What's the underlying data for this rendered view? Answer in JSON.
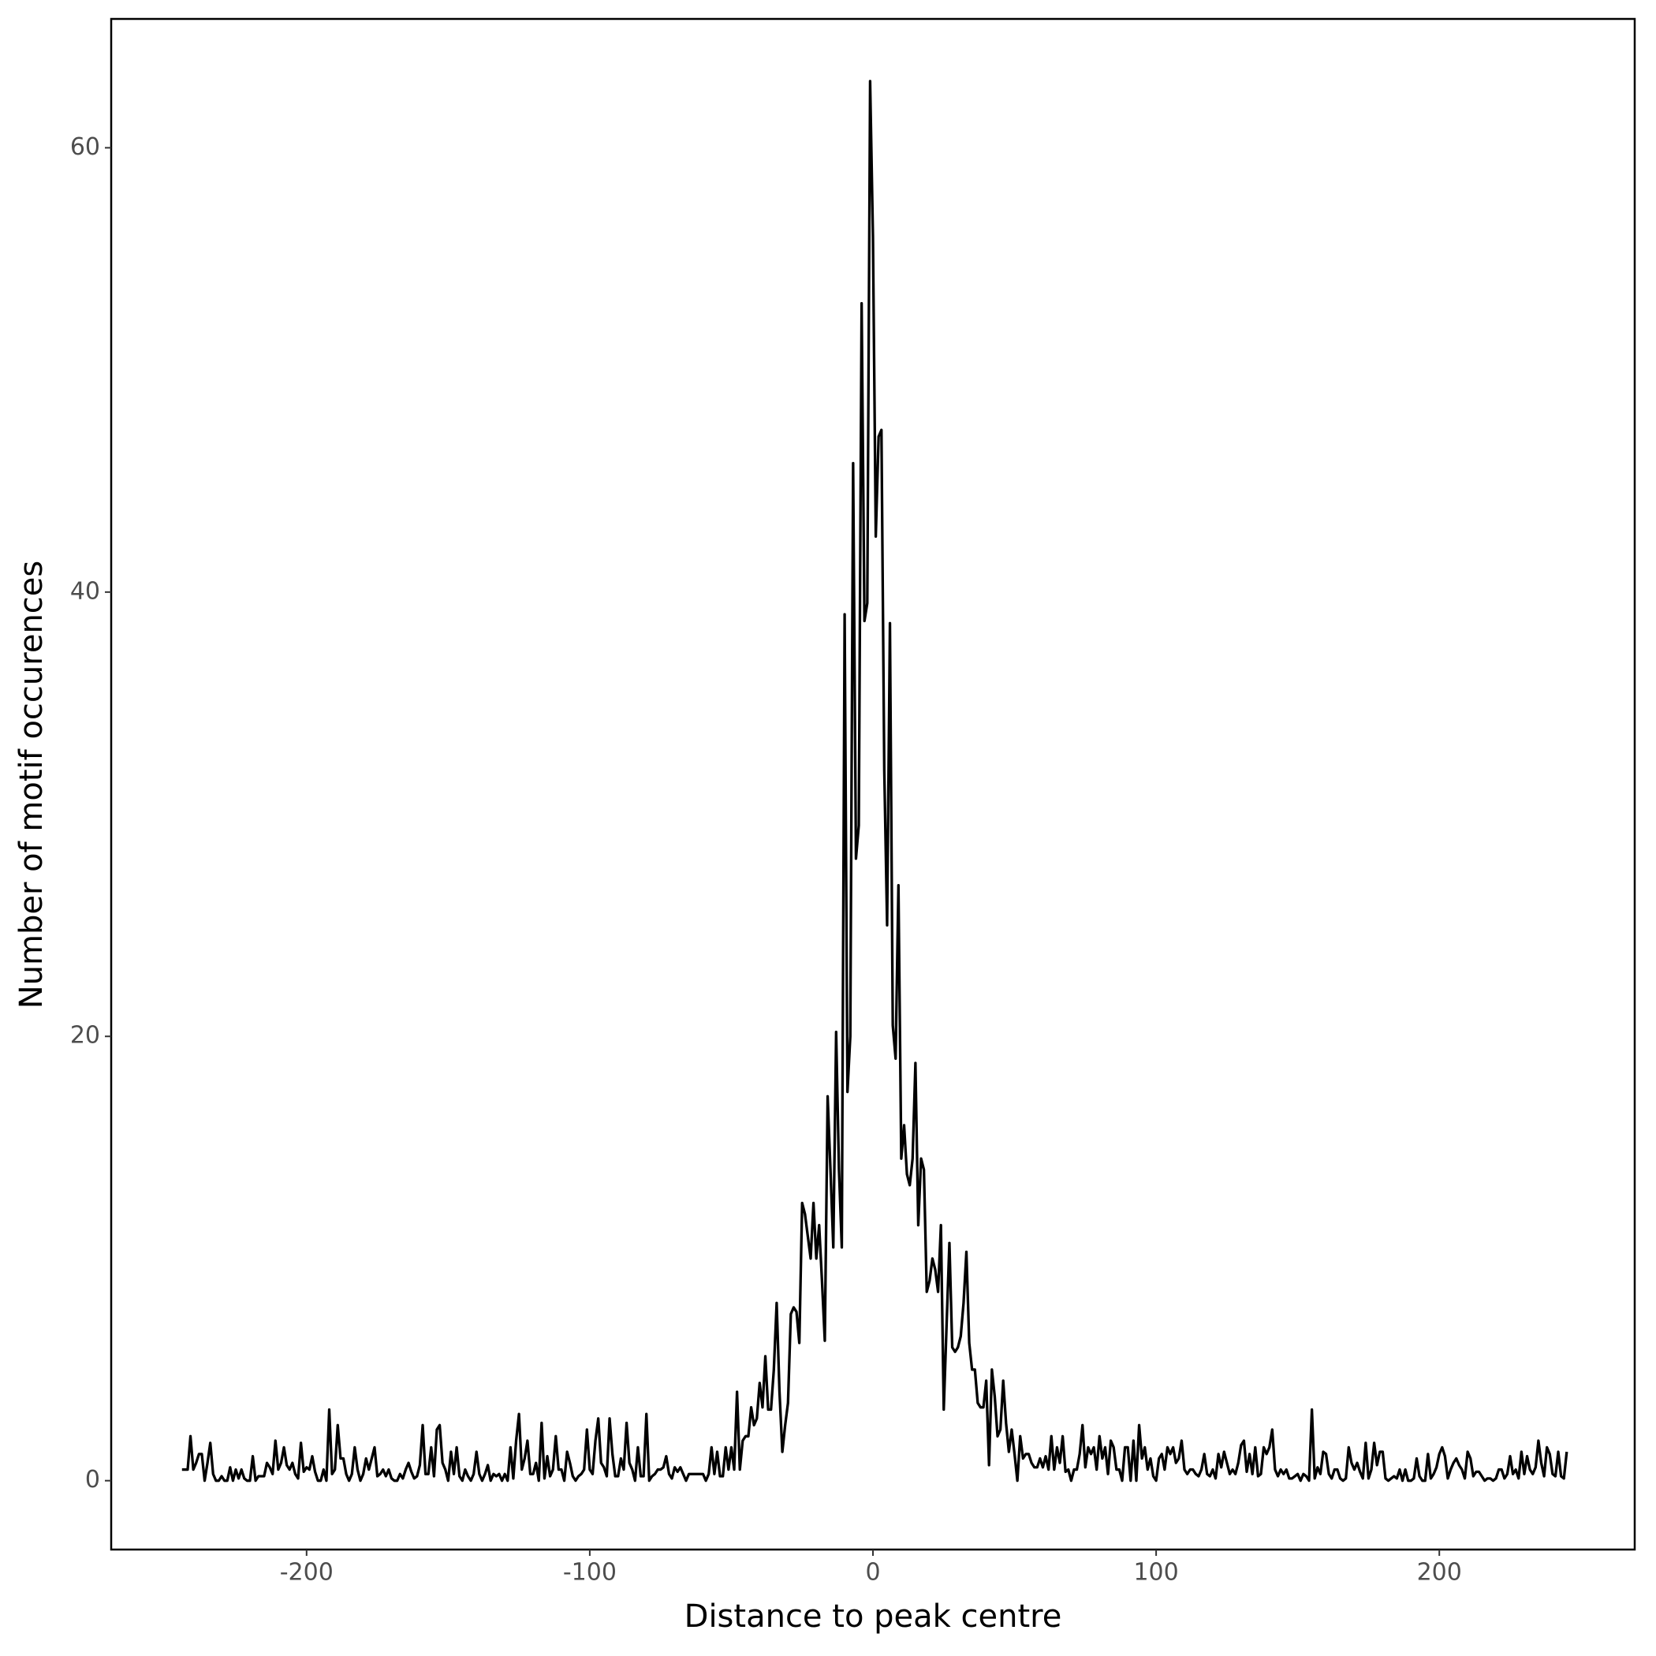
{
  "chart_data": {
    "type": "line",
    "xlabel": "Distance to peak centre",
    "ylabel": "Number of motif occurences",
    "color": "#000000",
    "xlim": [
      -269,
      269
    ],
    "ylim": [
      -3.1,
      65.8
    ],
    "xticks": [
      -200,
      -100,
      0,
      100,
      200
    ],
    "yticks": [
      0,
      20,
      40,
      60
    ],
    "x": [
      -244,
      -243,
      -242,
      -241,
      -240,
      -239,
      -238,
      -237,
      -236,
      -235,
      -234,
      -233,
      -232,
      -231,
      -230,
      -229,
      -228,
      -227,
      -226,
      -225,
      -224,
      -223,
      -222,
      -221,
      -220,
      -219,
      -218,
      -217,
      -216,
      -215,
      -214,
      -213,
      -212,
      -211,
      -210,
      -209,
      -208,
      -207,
      -206,
      -205,
      -204,
      -203,
      -202,
      -201,
      -200,
      -199,
      -198,
      -197,
      -196,
      -195,
      -194,
      -193,
      -192,
      -191,
      -190,
      -189,
      -188,
      -187,
      -186,
      -185,
      -184,
      -183,
      -182,
      -181,
      -180,
      -179,
      -178,
      -177,
      -176,
      -175,
      -174,
      -173,
      -172,
      -171,
      -170,
      -169,
      -168,
      -167,
      -166,
      -165,
      -164,
      -163,
      -162,
      -161,
      -160,
      -159,
      -158,
      -157,
      -156,
      -155,
      -154,
      -153,
      -152,
      -151,
      -150,
      -149,
      -148,
      -147,
      -146,
      -145,
      -144,
      -143,
      -142,
      -141,
      -140,
      -139,
      -138,
      -137,
      -136,
      -135,
      -134,
      -133,
      -132,
      -131,
      -130,
      -129,
      -128,
      -127,
      -126,
      -125,
      -124,
      -123,
      -122,
      -121,
      -120,
      -119,
      -118,
      -117,
      -116,
      -115,
      -114,
      -113,
      -112,
      -111,
      -110,
      -109,
      -108,
      -107,
      -106,
      -105,
      -104,
      -103,
      -102,
      -101,
      -100,
      -99,
      -98,
      -97,
      -96,
      -95,
      -94,
      -93,
      -92,
      -91,
      -90,
      -89,
      -88,
      -87,
      -86,
      -85,
      -84,
      -83,
      -82,
      -81,
      -80,
      -79,
      -78,
      -77,
      -76,
      -75,
      -74,
      -73,
      -72,
      -71,
      -70,
      -69,
      -68,
      -67,
      -66,
      -65,
      -64,
      -63,
      -62,
      -61,
      -60,
      -59,
      -58,
      -57,
      -56,
      -55,
      -54,
      -53,
      -52,
      -51,
      -50,
      -49,
      -48,
      -47,
      -46,
      -45,
      -44,
      -43,
      -42,
      -41,
      -40,
      -39,
      -38,
      -37,
      -36,
      -35,
      -34,
      -33,
      -32,
      -31,
      -30,
      -29,
      -28,
      -27,
      -26,
      -25,
      -24,
      -23,
      -22,
      -21,
      -20,
      -19,
      -18,
      -17,
      -16,
      -15,
      -14,
      -13,
      -12,
      -11,
      -10,
      -9,
      -8,
      -7,
      -6,
      -5,
      -4,
      -3,
      -2,
      -1,
      0,
      1,
      2,
      3,
      4,
      5,
      6,
      7,
      8,
      9,
      10,
      11,
      12,
      13,
      14,
      15,
      16,
      17,
      18,
      19,
      20,
      21,
      22,
      23,
      24,
      25,
      26,
      27,
      28,
      29,
      30,
      31,
      32,
      33,
      34,
      35,
      36,
      37,
      38,
      39,
      40,
      41,
      42,
      43,
      44,
      45,
      46,
      47,
      48,
      49,
      50,
      51,
      52,
      53,
      54,
      55,
      56,
      57,
      58,
      59,
      60,
      61,
      62,
      63,
      64,
      65,
      66,
      67,
      68,
      69,
      70,
      71,
      72,
      73,
      74,
      75,
      76,
      77,
      78,
      79,
      80,
      81,
      82,
      83,
      84,
      85,
      86,
      87,
      88,
      89,
      90,
      91,
      92,
      93,
      94,
      95,
      96,
      97,
      98,
      99,
      100,
      101,
      102,
      103,
      104,
      105,
      106,
      107,
      108,
      109,
      110,
      111,
      112,
      113,
      114,
      115,
      116,
      117,
      118,
      119,
      120,
      121,
      122,
      123,
      124,
      125,
      126,
      127,
      128,
      129,
      130,
      131,
      132,
      133,
      134,
      135,
      136,
      137,
      138,
      139,
      140,
      141,
      142,
      143,
      144,
      145,
      146,
      147,
      148,
      149,
      150,
      151,
      152,
      153,
      154,
      155,
      156,
      157,
      158,
      159,
      160,
      161,
      162,
      163,
      164,
      165,
      166,
      167,
      168,
      169,
      170,
      171,
      172,
      173,
      174,
      175,
      176,
      177,
      178,
      179,
      180,
      181,
      182,
      183,
      184,
      185,
      186,
      187,
      188,
      189,
      190,
      191,
      192,
      193,
      194,
      195,
      196,
      197,
      198,
      199,
      200,
      201,
      202,
      203,
      204,
      205,
      206,
      207,
      208,
      209,
      210,
      211,
      212,
      213,
      214,
      215,
      216,
      217,
      218,
      219,
      220,
      221,
      222,
      223,
      224,
      225,
      226,
      227,
      228,
      229,
      230,
      231,
      232,
      233,
      234,
      235,
      236,
      237,
      238,
      239,
      240,
      241,
      242,
      243,
      244,
      245
    ],
    "values": [
      0.5,
      0.5,
      0.5,
      2,
      0.5,
      0.8,
      1.2,
      1.2,
      0,
      0.8,
      1.7,
      0.3,
      0,
      0,
      0.2,
      0,
      0,
      0.6,
      0,
      0.5,
      0.1,
      0.5,
      0.1,
      0,
      0,
      1.1,
      0,
      0.2,
      0.2,
      0.2,
      0.8,
      0.6,
      0.3,
      1.8,
      0.5,
      0.8,
      1.5,
      0.7,
      0.5,
      0.8,
      0.3,
      0.1,
      1.7,
      0.4,
      0.6,
      0.5,
      1.1,
      0.4,
      0,
      0,
      0.5,
      0,
      3.2,
      0.3,
      0.5,
      2.5,
      1,
      1,
      0.3,
      0,
      0.3,
      1.5,
      0.5,
      0,
      0.3,
      1,
      0.5,
      1,
      1.5,
      0.2,
      0.3,
      0.5,
      0.2,
      0.5,
      0.1,
      0,
      0,
      0.3,
      0.1,
      0.5,
      0.8,
      0.4,
      0.1,
      0.2,
      0.7,
      2.5,
      0.3,
      0.3,
      1.5,
      0.2,
      2.3,
      2.5,
      0.8,
      0.5,
      0,
      1.3,
      0.3,
      1.5,
      0.2,
      0,
      0.5,
      0.2,
      0,
      0.3,
      1.3,
      0.3,
      0,
      0.3,
      0.7,
      0,
      0.3,
      0.2,
      0.3,
      0,
      0.3,
      0,
      1.5,
      0.1,
      1.8,
      3,
      0.5,
      1,
      1.8,
      0.3,
      0.3,
      0.8,
      0,
      2.6,
      0.1,
      1.1,
      0.2,
      0.5,
      2,
      0.5,
      0.5,
      0,
      1.3,
      0.8,
      0.2,
      0,
      0.2,
      0.3,
      0.5,
      2.3,
      0.5,
      0.3,
      1.8,
      2.8,
      0.8,
      0.6,
      0.2,
      2.8,
      1.2,
      0.2,
      0.2,
      1,
      0.5,
      2.6,
      0.8,
      0.5,
      0,
      1.5,
      0.2,
      0.2,
      3,
      0,
      0.2,
      0.3,
      0.5,
      0.5,
      0.6,
      1.1,
      0.3,
      0.1,
      0.6,
      0.4,
      0.6,
      0.3,
      0,
      0.3,
      0.3,
      0.3,
      0.3,
      0.3,
      0.3,
      0,
      0.3,
      1.5,
      0.3,
      1.3,
      0.2,
      0.2,
      1.5,
      0.5,
      1.5,
      0.5,
      4,
      0.5,
      1.8,
      2,
      2,
      3.3,
      2.5,
      2.8,
      4.4,
      3.3,
      5.6,
      3.2,
      3.2,
      5,
      8,
      4,
      1.3,
      2.5,
      3.5,
      7.5,
      7.8,
      7.6,
      6.2,
      12.5,
      12,
      11,
      10,
      12.5,
      10,
      11.5,
      9,
      6.3,
      17.3,
      14,
      10.5,
      20.2,
      14,
      10.5,
      39,
      17.5,
      20,
      45.8,
      28,
      29.5,
      53,
      38.7,
      39.5,
      63,
      56,
      42.5,
      47,
      47.3,
      32,
      25,
      38.6,
      20.5,
      19,
      26.8,
      14.5,
      16,
      13.8,
      13.3,
      14.5,
      18.8,
      11.5,
      14.5,
      14,
      8.5,
      9,
      10,
      9.5,
      8.5,
      11.5,
      3.2,
      7,
      10.7,
      6,
      5.8,
      6,
      6.5,
      8,
      10.3,
      6.2,
      5,
      5,
      3.5,
      3.3,
      3.3,
      4.5,
      0.7,
      5,
      3.8,
      2,
      2.3,
      4.5,
      2.6,
      1.3,
      2.3,
      1.2,
      0,
      2,
      1,
      1.2,
      1.2,
      0.8,
      0.6,
      0.6,
      1,
      0.6,
      1.1,
      0.5,
      2,
      0.5,
      1.5,
      0.8,
      2,
      0.4,
      0.5,
      0,
      0.5,
      0.5,
      1.2,
      2.5,
      0.6,
      1.5,
      1.2,
      1.5,
      0.5,
      2,
      1,
      1.5,
      0.3,
      1.8,
      1.5,
      0.5,
      0.5,
      0,
      1.5,
      1.5,
      0,
      1.8,
      0,
      2.5,
      1,
      1.5,
      0.5,
      1,
      0.2,
      0,
      1,
      1.2,
      0.5,
      1.5,
      1.2,
      1.5,
      0.8,
      1,
      1.8,
      0.5,
      0.3,
      0.5,
      0.5,
      0.3,
      0.2,
      0.5,
      1.2,
      0.3,
      0.2,
      0.5,
      0.1,
      1.2,
      0.6,
      1.3,
      0.8,
      0.3,
      0.5,
      0.3,
      0.8,
      1.6,
      1.8,
      0.4,
      1.2,
      0.3,
      1.5,
      0.2,
      0.3,
      1.5,
      1.2,
      1.5,
      2.3,
      0.5,
      0.2,
      0.5,
      0.3,
      0.5,
      0.1,
      0.1,
      0.2,
      0.3,
      0,
      0.3,
      0.2,
      0,
      3.2,
      0.1,
      0.6,
      0.3,
      1.3,
      1.2,
      0.3,
      0.1,
      0.5,
      0.5,
      0.1,
      0,
      0.1,
      1.5,
      0.8,
      0.5,
      0.8,
      0.4,
      0.1,
      1.7,
      0.1,
      0.5,
      1.7,
      0.7,
      1.3,
      1.3,
      0.1,
      0,
      0.1,
      0.2,
      0.1,
      0.5,
      0,
      0.5,
      0,
      0,
      0.1,
      1,
      0.2,
      0,
      0,
      1.2,
      0.1,
      0.3,
      0.6,
      1.2,
      1.5,
      1.1,
      0.1,
      0.5,
      0.8,
      1,
      0.7,
      0.5,
      0.1,
      1.3,
      1,
      0.2,
      0.4,
      0.4,
      0.2,
      0,
      0.1,
      0.1,
      0,
      0.1,
      0.5,
      0.5,
      0.1,
      0.3,
      1.1,
      0.3,
      0.5,
      0.1,
      1.3,
      0.3,
      1.1,
      0.5,
      0.3,
      0.6,
      1.8,
      0.8,
      0.2,
      1.5,
      1.2,
      0.3,
      0.2,
      1.3,
      0.2,
      0.1,
      1.3
    ]
  }
}
